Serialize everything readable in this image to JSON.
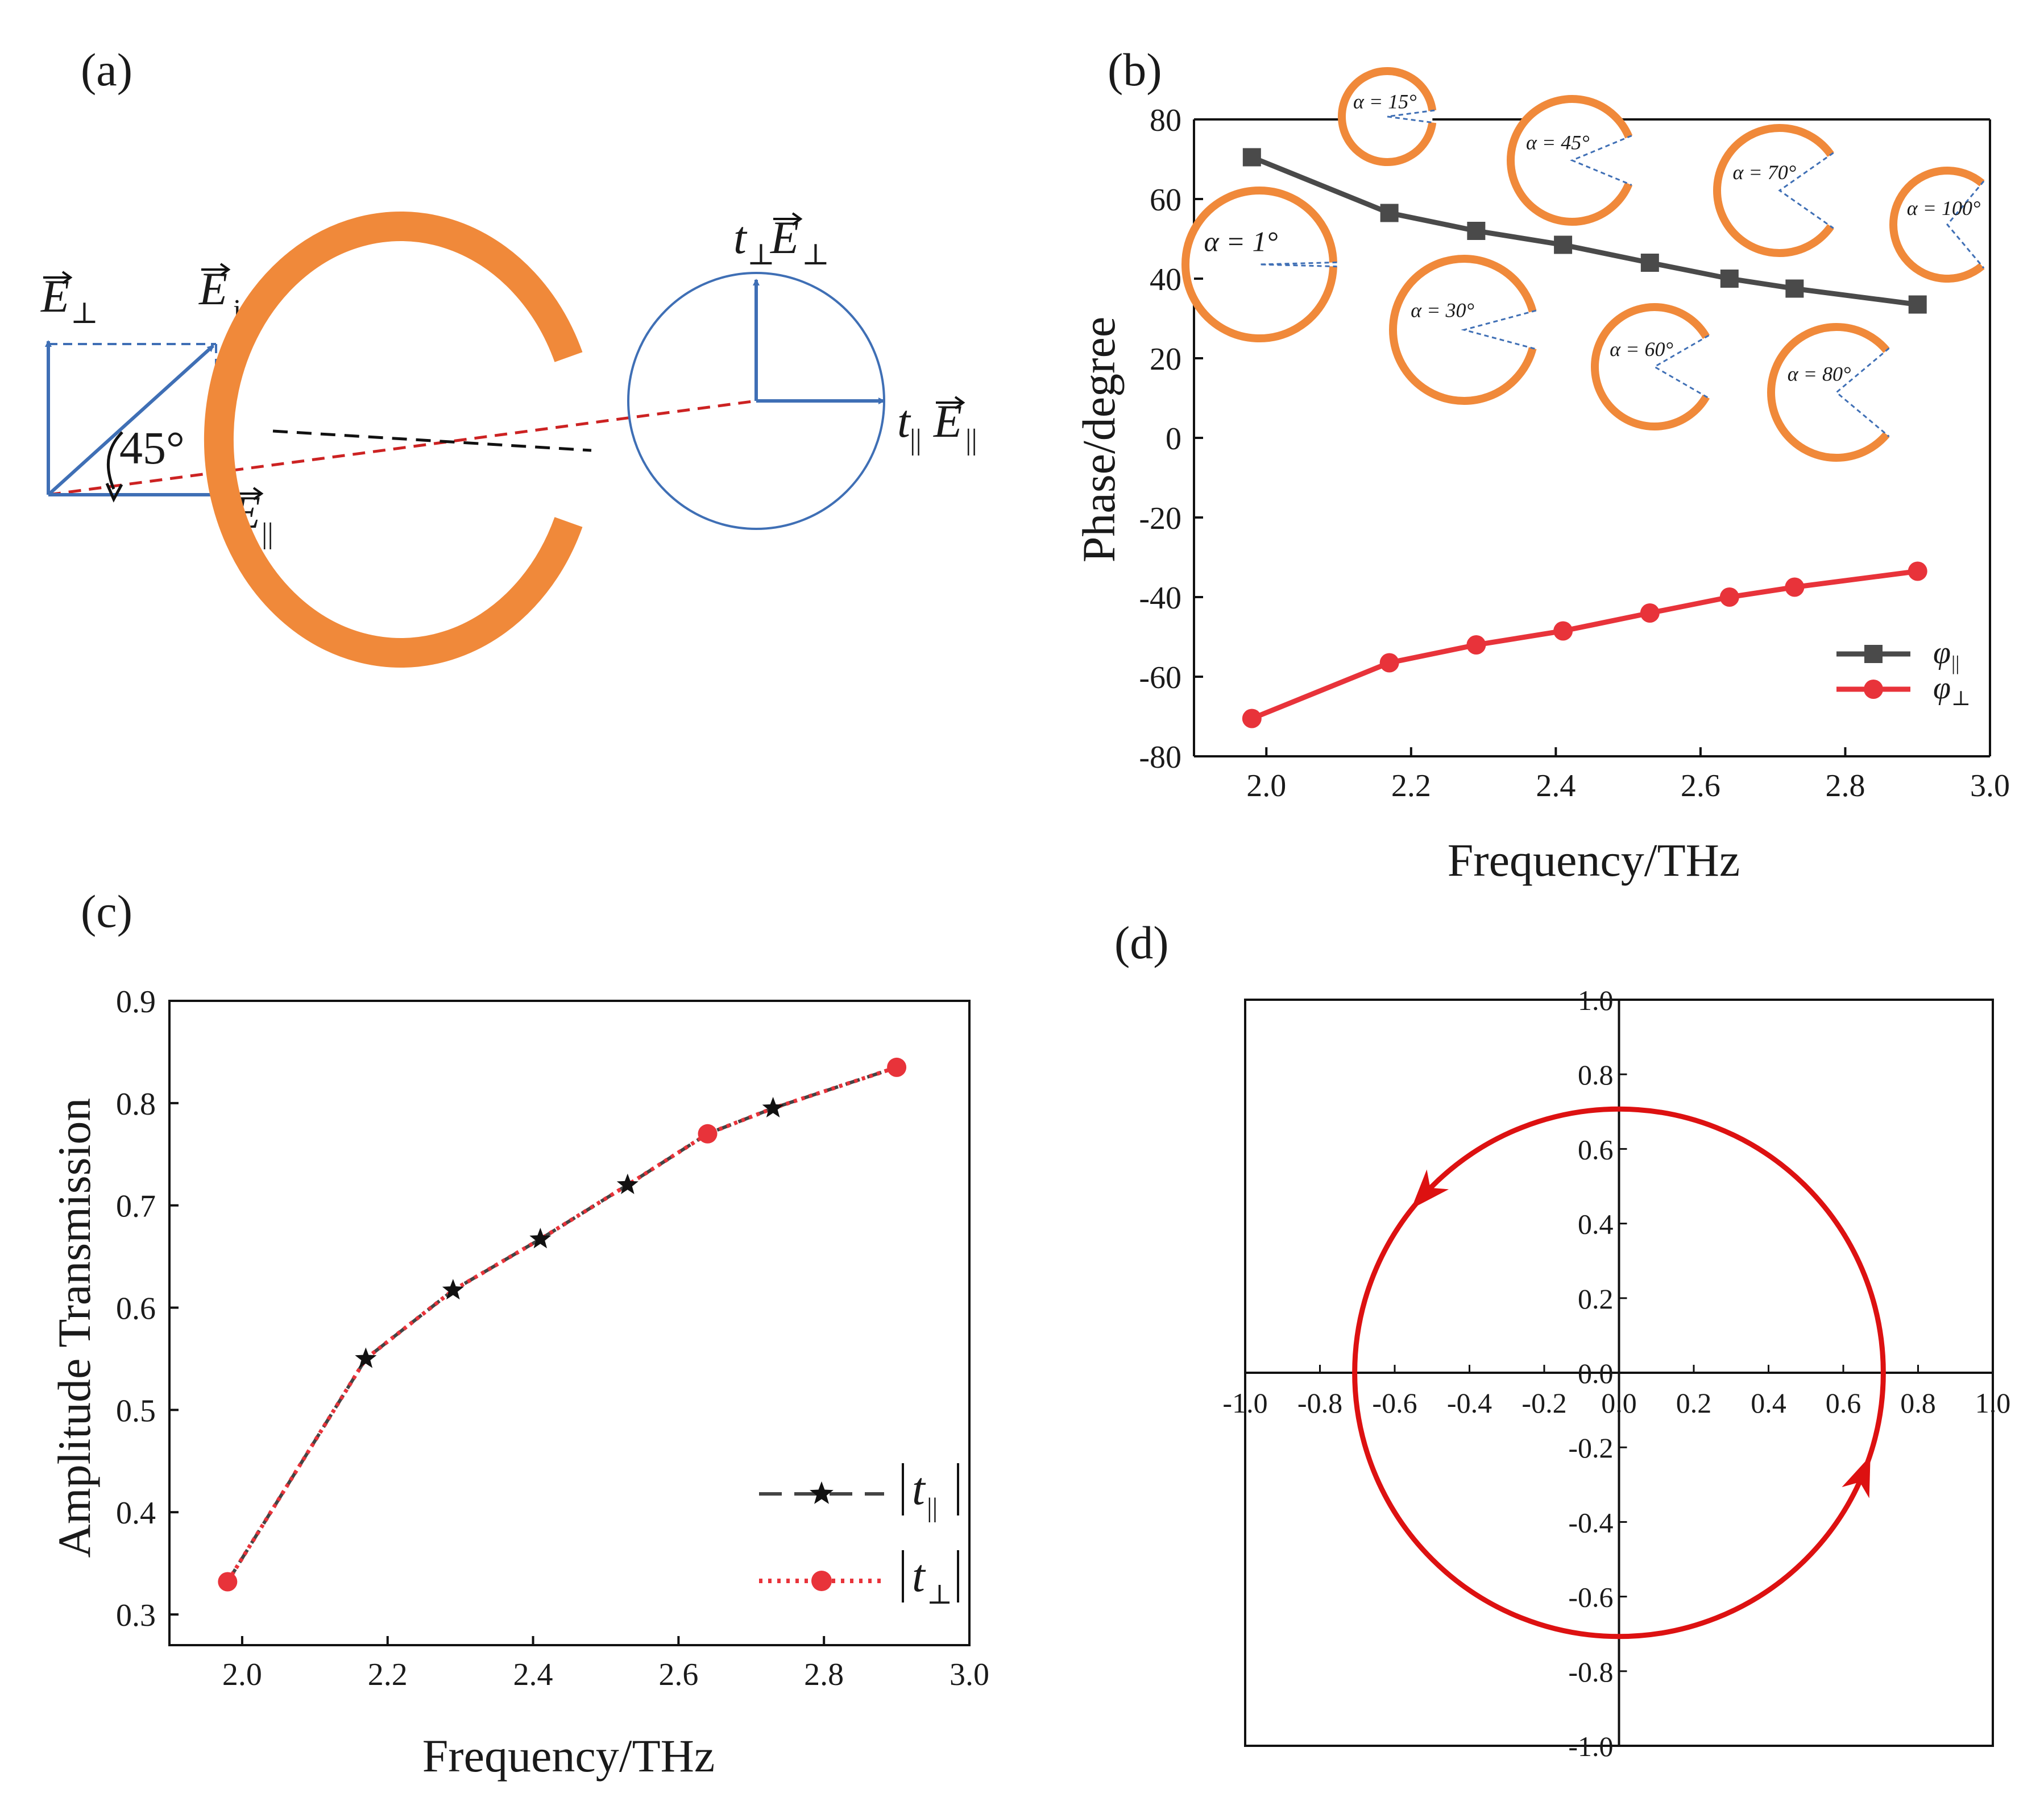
{
  "panels": {
    "a": {
      "label": "(a)",
      "angle_label": "45°",
      "vec_perp": "E",
      "vec_perp_sub": "⊥",
      "vec_in": "E",
      "vec_in_sub": "in",
      "vec_par": "E",
      "vec_par_sub": "||",
      "out_perp_coef": "t",
      "out_perp_coef_sub": "⊥",
      "out_perp_vec": "E",
      "out_perp_vec_sub": "⊥",
      "out_par_coef": "t",
      "out_par_coef_sub": "||",
      "out_par_vec": "E",
      "out_par_vec_sub": "||",
      "colors": {
        "vector": "#3f6fb5",
        "ring": "#f0893a",
        "red_dash": "#cc2222",
        "black_dash": "#111111"
      }
    },
    "b": {
      "label": "(b)",
      "insets": [
        "α = 15°",
        "α = 45°",
        "α = 70°",
        "α = 100°",
        "α = 1°",
        "α = 30°",
        "α = 60°",
        "α = 80°"
      ]
    },
    "c": {
      "label": "(c)"
    },
    "d": {
      "label": "(d)"
    }
  },
  "chart_data": [
    {
      "id": "b",
      "type": "line",
      "xlabel": "Frequency/THz",
      "ylabel": "Phase/degree",
      "xlim": [
        1.9,
        3.0
      ],
      "ylim": [
        -80,
        80
      ],
      "xticks": [
        "2.0",
        "2.2",
        "2.4",
        "2.6",
        "2.8",
        "3.0"
      ],
      "yticks": [
        "80",
        "60",
        "40",
        "20",
        "0",
        "-20",
        "-40",
        "-60",
        "-80"
      ],
      "x": [
        1.98,
        2.17,
        2.29,
        2.41,
        2.53,
        2.64,
        2.73,
        2.9
      ],
      "series": [
        {
          "name": "φ||",
          "legend_symbol": "φ",
          "legend_sub": "||",
          "color": "#4a4a4a",
          "marker": "square",
          "values": [
            70.5,
            56.5,
            52,
            48.5,
            44,
            40,
            37.5,
            33.5
          ]
        },
        {
          "name": "φ⊥",
          "legend_symbol": "φ",
          "legend_sub": "⊥",
          "color": "#e8333a",
          "marker": "circle",
          "values": [
            -70.5,
            -56.5,
            -52,
            -48.5,
            -44,
            -40,
            -37.5,
            -33.5
          ]
        }
      ],
      "legend": "bottom-right"
    },
    {
      "id": "c",
      "type": "line",
      "xlabel": "Frequency/THz",
      "ylabel": "Amplitude Transmission",
      "xlim": [
        1.9,
        3.0
      ],
      "ylim": [
        0.27,
        0.9
      ],
      "xticks": [
        "2.0",
        "2.2",
        "2.4",
        "2.6",
        "2.8",
        "3.0"
      ],
      "yticks": [
        "0.9",
        "0.8",
        "0.7",
        "0.6",
        "0.5",
        "0.4",
        "0.3"
      ],
      "x": [
        1.98,
        2.17,
        2.29,
        2.41,
        2.53,
        2.64,
        2.73,
        2.9
      ],
      "series": [
        {
          "name": "|t||||",
          "legend_symbol": "t",
          "legend_sub": "||",
          "color": "#444444",
          "marker": "star",
          "values": [
            0.332,
            0.55,
            0.617,
            0.667,
            0.72,
            0.77,
            0.795,
            0.835
          ]
        },
        {
          "name": "|t⊥|",
          "legend_symbol": "t",
          "legend_sub": "⊥",
          "color": "#e8333a",
          "marker": "circle",
          "values": [
            0.332,
            0.55,
            0.617,
            0.667,
            0.72,
            0.77,
            0.795,
            0.835
          ]
        }
      ],
      "legend": "bottom-right"
    },
    {
      "id": "d",
      "type": "line",
      "xlim": [
        -1.0,
        1.0
      ],
      "ylim": [
        -1.0,
        1.0
      ],
      "xticks": [
        "-1.0",
        "-0.8",
        "-0.6",
        "-0.4",
        "-0.2",
        "0.0",
        "0.2",
        "0.4",
        "0.6",
        "0.8",
        "1.0"
      ],
      "yticks": [
        "1.0",
        "0.8",
        "0.6",
        "0.4",
        "0.2",
        "0.0",
        "-0.2",
        "-0.4",
        "-0.6",
        "-0.8",
        "-1.0"
      ],
      "series": [
        {
          "name": "polarization-circle",
          "color": "#dd1111",
          "radius": 0.707
        }
      ]
    }
  ]
}
